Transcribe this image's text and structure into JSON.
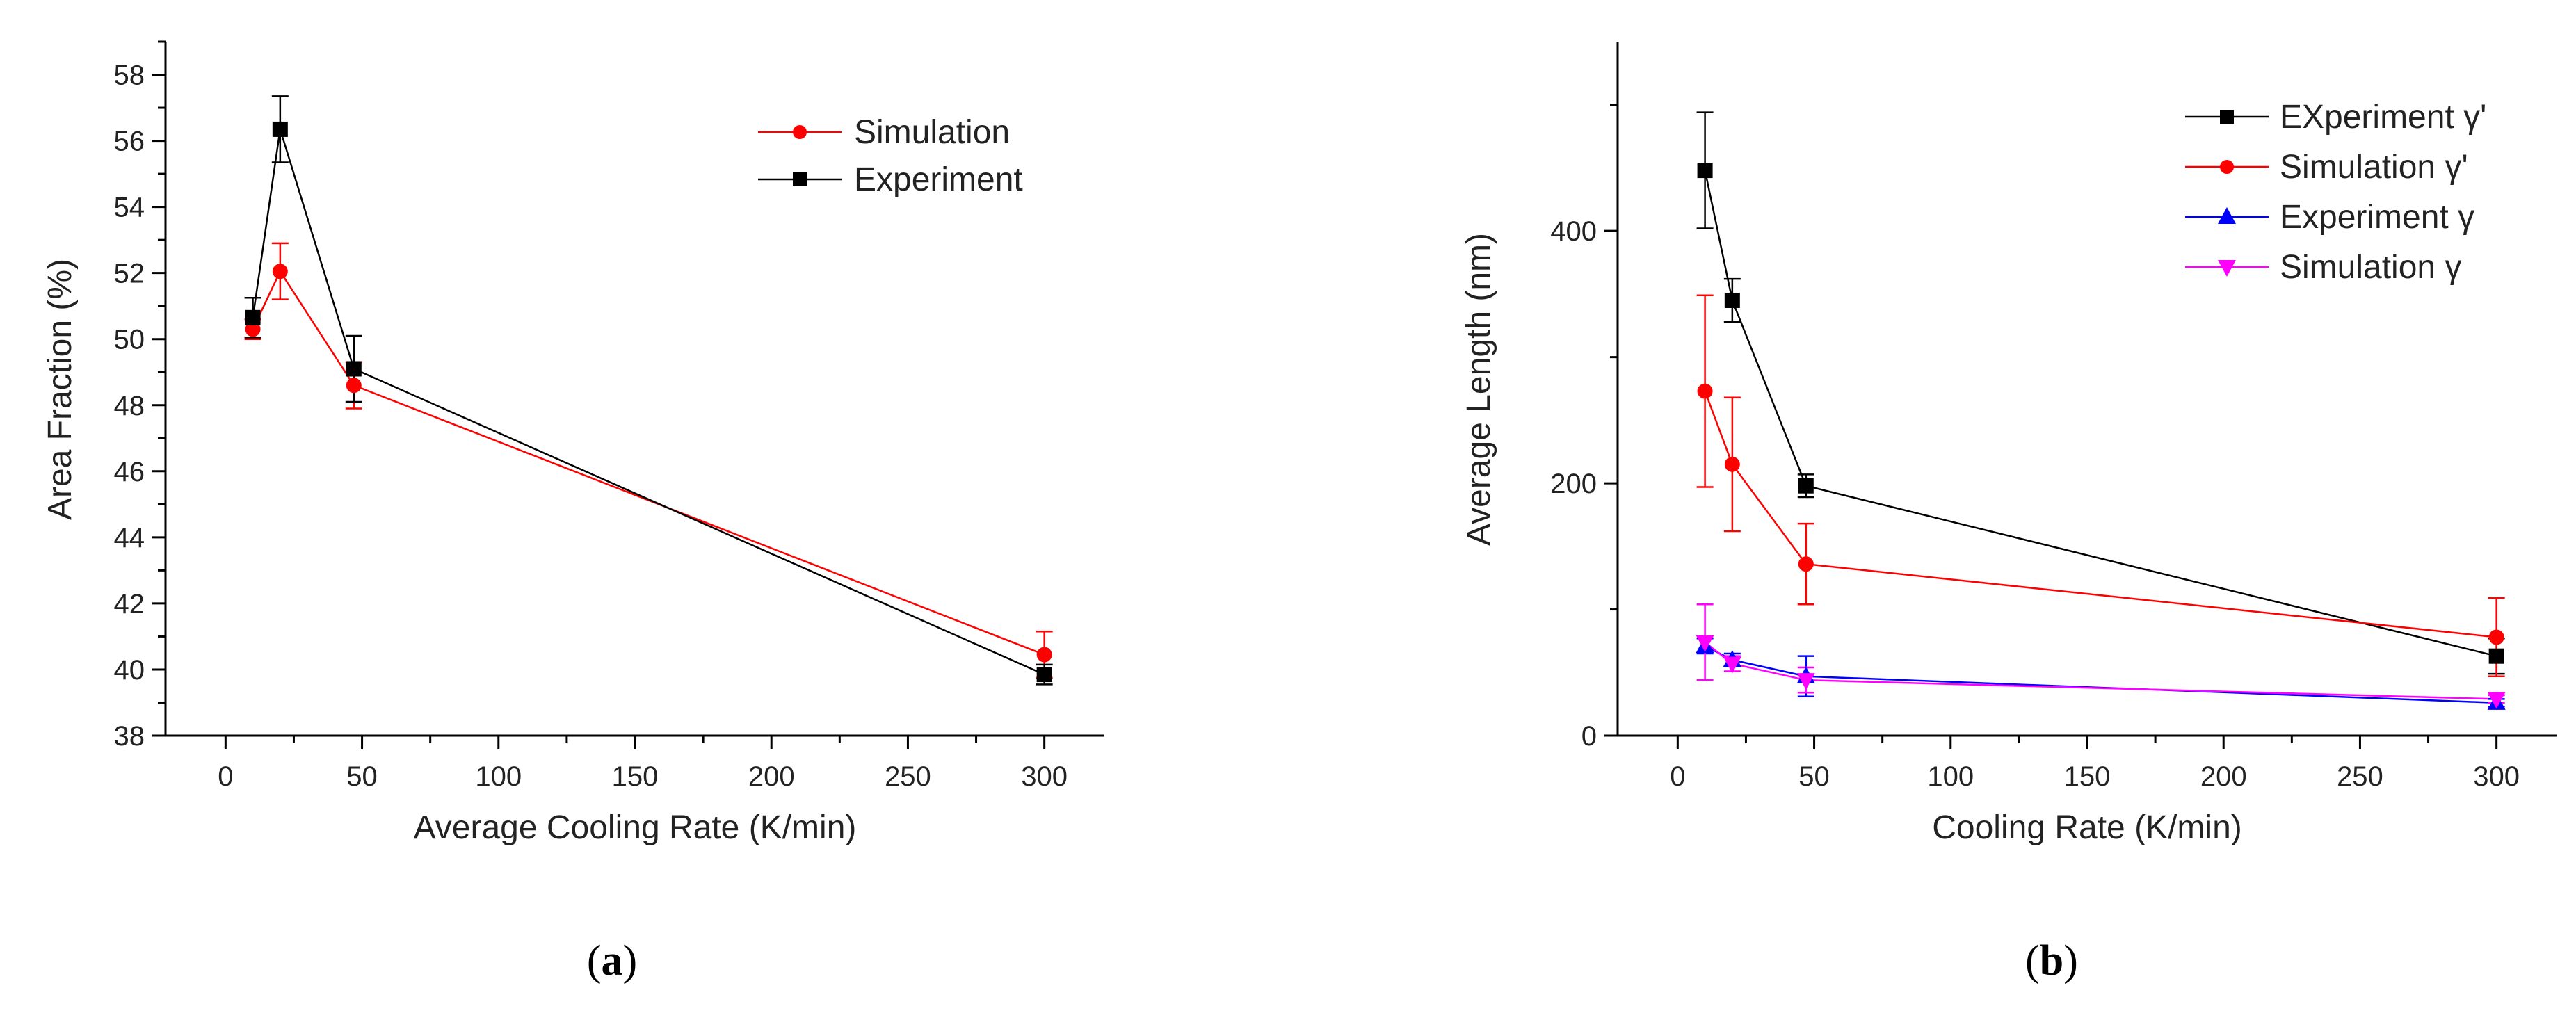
{
  "chart_data": [
    {
      "type": "line",
      "panel_label": "a",
      "xlabel": "Average Cooling Rate (K/min)",
      "ylabel": "Area Fraction (%)",
      "xlim": [
        -22,
        322
      ],
      "ylim": [
        38,
        59
      ],
      "xticks": [
        0,
        50,
        100,
        150,
        200,
        250,
        300
      ],
      "yticks": [
        38,
        40,
        42,
        44,
        46,
        48,
        50,
        52,
        54,
        56,
        58
      ],
      "legend_position": "top-right",
      "series": [
        {
          "name": "Simulation",
          "color": "#ff0000",
          "marker": "circle",
          "x": [
            10,
            20,
            47,
            300
          ],
          "y": [
            50.3,
            52.05,
            48.6,
            40.45
          ],
          "err": [
            0.3,
            0.85,
            0.7,
            0.7
          ]
        },
        {
          "name": "Experiment",
          "color": "#000000",
          "marker": "square",
          "x": [
            10,
            20,
            47,
            300
          ],
          "y": [
            50.65,
            56.35,
            49.1,
            39.85
          ],
          "err": [
            0.6,
            1.0,
            1.0,
            0.3
          ]
        }
      ]
    },
    {
      "type": "line",
      "panel_label": "b",
      "xlabel": "Cooling Rate (K/min)",
      "ylabel": "Average Length (nm)",
      "xlim": [
        -22,
        322
      ],
      "ylim": [
        0,
        550
      ],
      "xticks": [
        0,
        50,
        100,
        150,
        200,
        250,
        300
      ],
      "yticks": [
        0,
        200,
        400
      ],
      "legend_position": "top-right",
      "series": [
        {
          "name": "EXperiment γ'",
          "color": "#000000",
          "marker": "square",
          "x": [
            10,
            20,
            47,
            300
          ],
          "y": [
            448,
            345,
            198,
            63
          ],
          "err": [
            46,
            17,
            9,
            14
          ]
        },
        {
          "name": "Simulation γ'",
          "color": "#ff0000",
          "marker": "circle",
          "x": [
            10,
            20,
            47,
            300
          ],
          "y": [
            273,
            215,
            136,
            78
          ],
          "err": [
            76,
            53,
            32,
            31
          ]
        },
        {
          "name": "Experiment γ",
          "color": "#0000ff",
          "marker": "triangle-up",
          "x": [
            10,
            20,
            47,
            300
          ],
          "y": [
            71,
            60,
            47,
            26
          ],
          "err": [
            6,
            5,
            16,
            3
          ]
        },
        {
          "name": "Simulation γ",
          "color": "#ff00ff",
          "marker": "triangle-down",
          "x": [
            10,
            20,
            47,
            300
          ],
          "y": [
            74,
            57,
            44,
            29
          ],
          "err": [
            30,
            6,
            10,
            3
          ]
        }
      ]
    }
  ]
}
